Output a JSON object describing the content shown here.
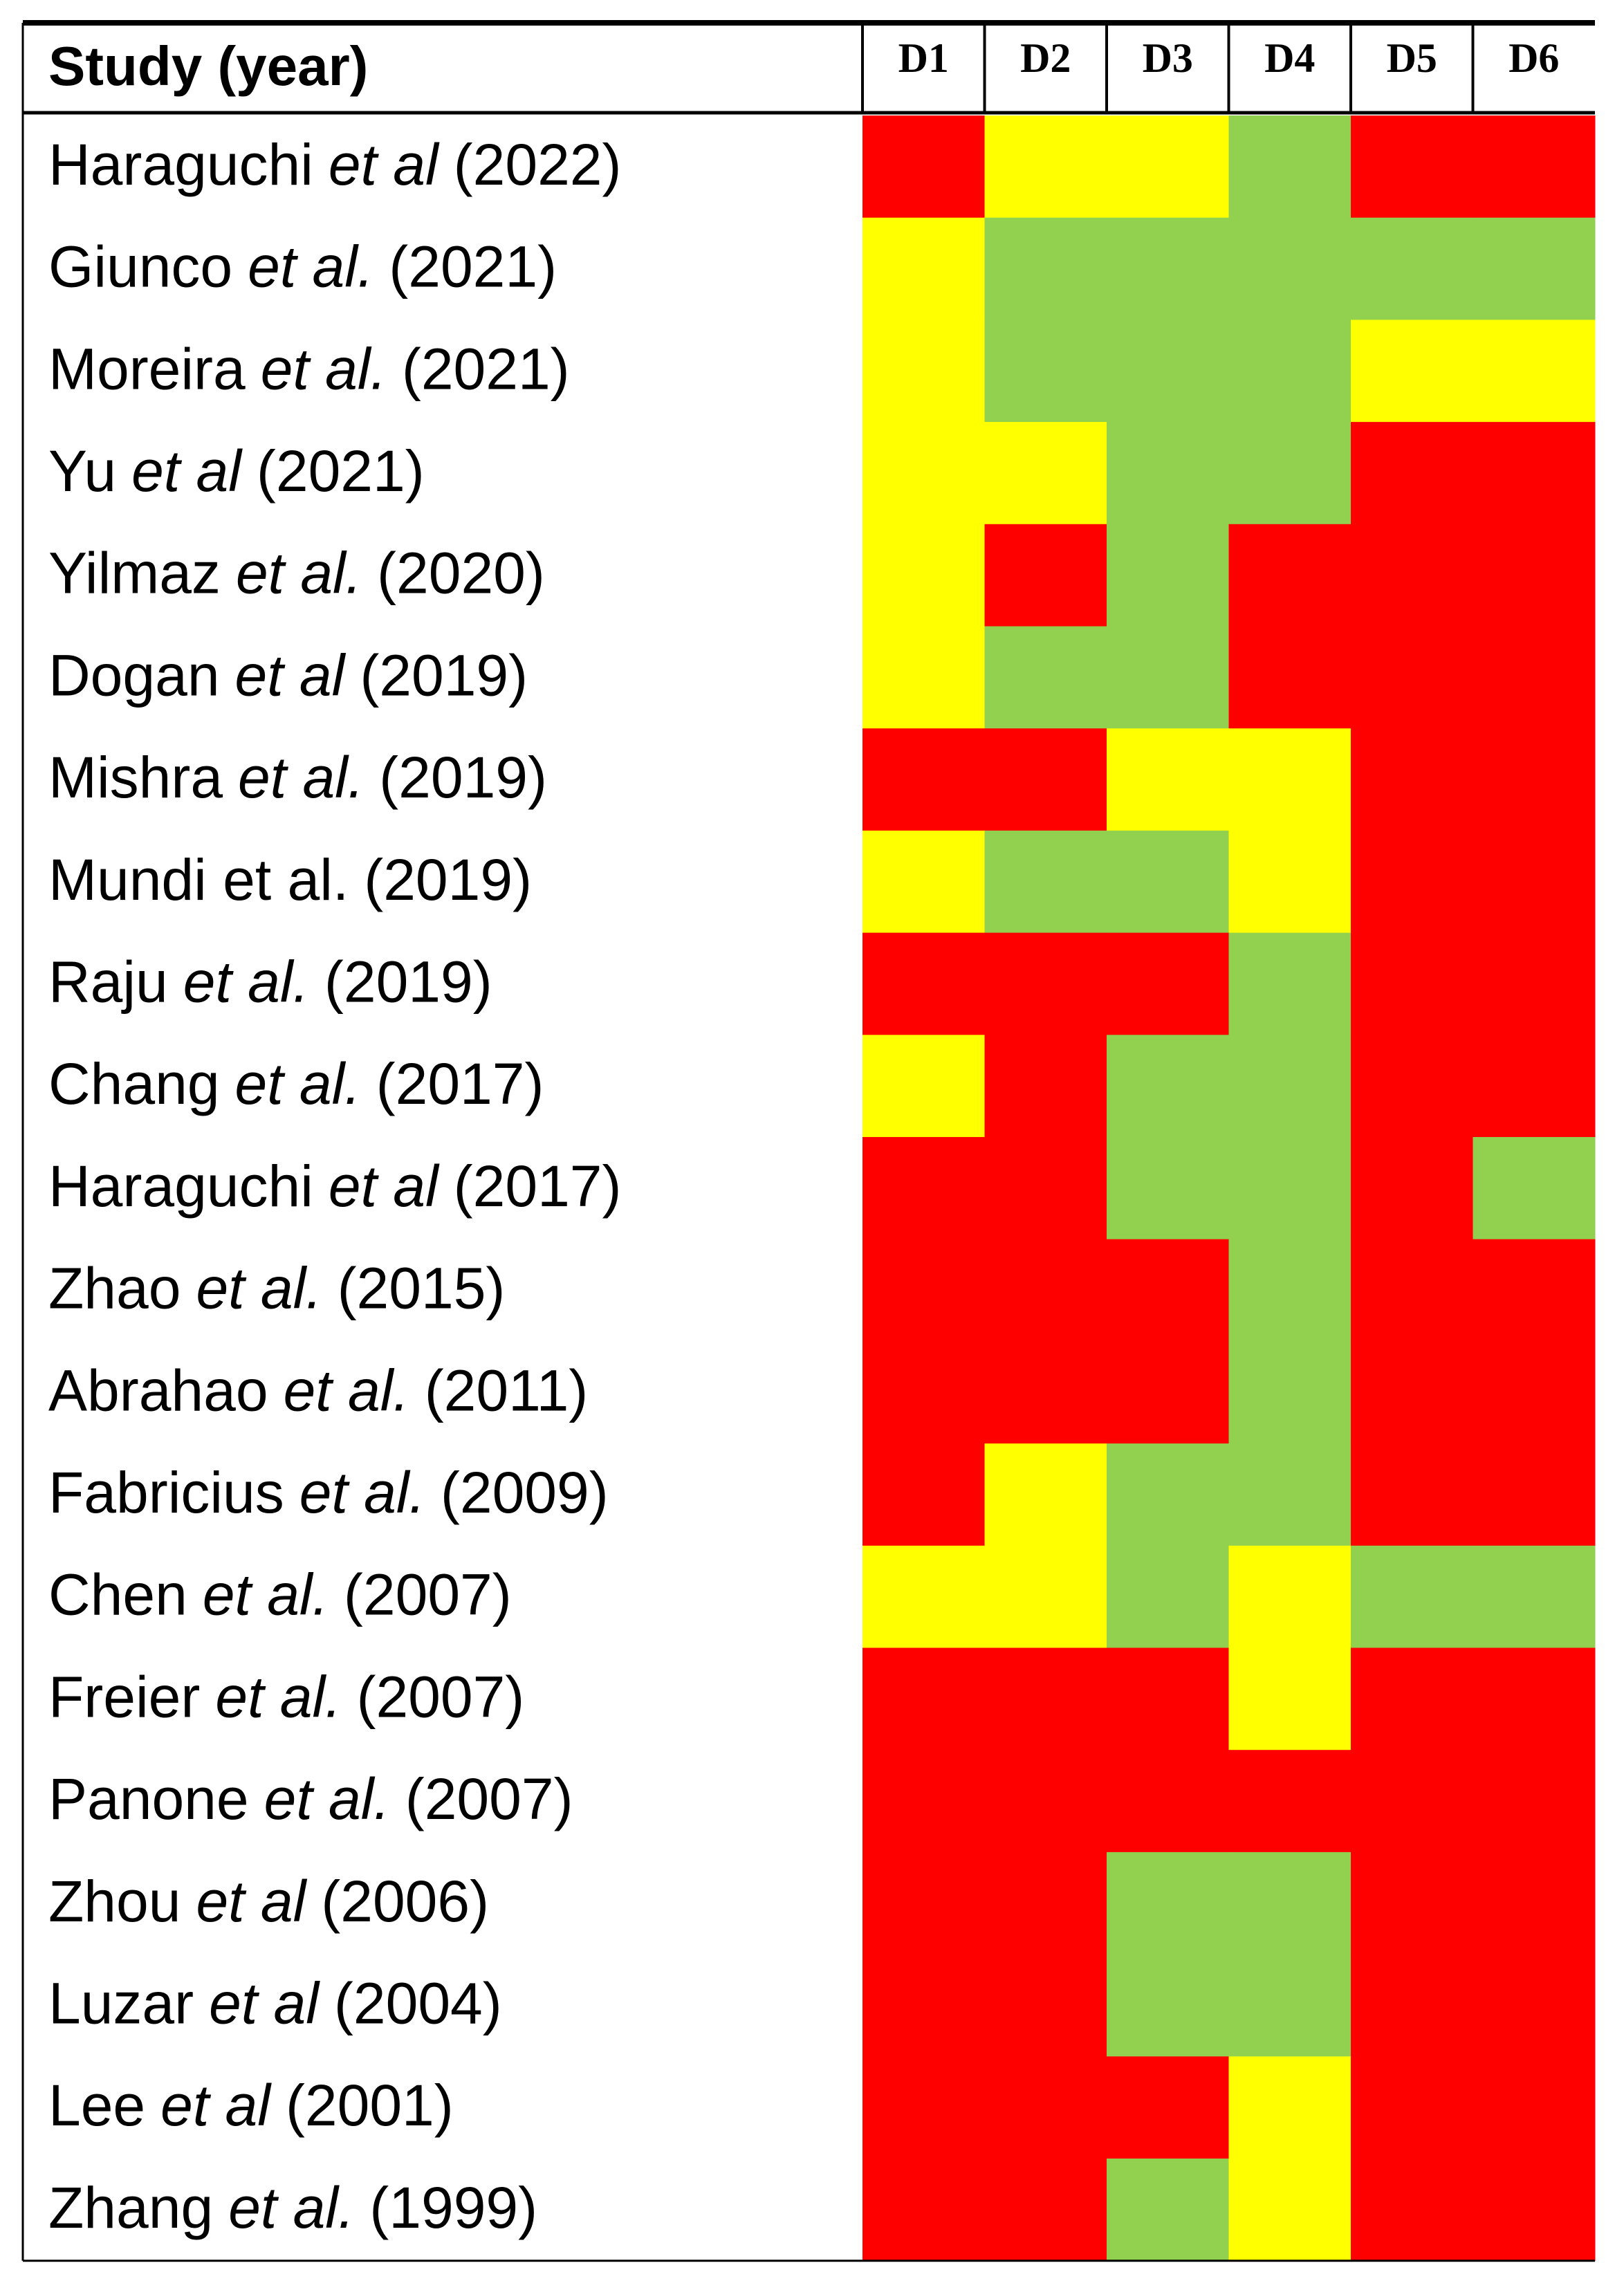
{
  "table": {
    "header": {
      "study": "Study (year)",
      "domains": [
        "D1",
        "D2",
        "D3",
        "D4",
        "D5",
        "D6"
      ]
    },
    "rows": [
      {
        "author": "Haraguchi",
        "etal": "et al",
        "year": "(2022)",
        "cells": [
          "#ff0000",
          "#ffff00",
          "#ffff00",
          "#92d050",
          "#ff0000",
          "#ff0000"
        ]
      },
      {
        "author": "Giunco",
        "etal": "et al.",
        "year": "(2021)",
        "cells": [
          "#ffff00",
          "#92d050",
          "#92d050",
          "#92d050",
          "#92d050",
          "#92d050"
        ]
      },
      {
        "author": "Moreira",
        "etal": "et al.",
        "year": "(2021)",
        "cells": [
          "#ffff00",
          "#92d050",
          "#92d050",
          "#92d050",
          "#ffff00",
          "#ffff00"
        ]
      },
      {
        "author": "Yu",
        "etal": "et al",
        "year": "(2021)",
        "cells": [
          "#ffff00",
          "#ffff00",
          "#92d050",
          "#92d050",
          "#ff0000",
          "#ff0000"
        ]
      },
      {
        "author": "Yilmaz",
        "etal": "et al.",
        "year": "(2020)",
        "cells": [
          "#ffff00",
          "#ff0000",
          "#92d050",
          "#ff0000",
          "#ff0000",
          "#ff0000"
        ]
      },
      {
        "author": "Dogan",
        "etal": "et al",
        "year": "(2019)",
        "cells": [
          "#ffff00",
          "#92d050",
          "#92d050",
          "#ff0000",
          "#ff0000",
          "#ff0000"
        ]
      },
      {
        "author": "Mishra",
        "etal": "et al.",
        "year": "(2019)",
        "cells": [
          "#ff0000",
          "#ff0000",
          "#ffff00",
          "#ffff00",
          "#ff0000",
          "#ff0000"
        ]
      },
      {
        "author": "Mundi et al.",
        "year": "(2019)",
        "cells": [
          "#ffff00",
          "#92d050",
          "#92d050",
          "#ffff00",
          "#ff0000",
          "#ff0000"
        ]
      },
      {
        "author": "Raju",
        "etal": "et al.",
        "year": "(2019)",
        "cells": [
          "#ff0000",
          "#ff0000",
          "#ff0000",
          "#92d050",
          "#ff0000",
          "#ff0000"
        ]
      },
      {
        "author": "Chang",
        "etal": "et al.",
        "year": "(2017)",
        "cells": [
          "#ffff00",
          "#ff0000",
          "#92d050",
          "#92d050",
          "#ff0000",
          "#ff0000"
        ]
      },
      {
        "author": "Haraguchi",
        "etal": "et al",
        "year": "(2017)",
        "cells": [
          "#ff0000",
          "#ff0000",
          "#92d050",
          "#92d050",
          "#ff0000",
          "#92d050"
        ]
      },
      {
        "author": "Zhao",
        "etal": "et al.",
        "year": "(2015)",
        "cells": [
          "#ff0000",
          "#ff0000",
          "#ff0000",
          "#92d050",
          "#ff0000",
          "#ff0000"
        ]
      },
      {
        "author": "Abrahao",
        "etal": "et al.",
        "year": "(2011)",
        "cells": [
          "#ff0000",
          "#ff0000",
          "#ff0000",
          "#92d050",
          "#ff0000",
          "#ff0000"
        ]
      },
      {
        "author": "Fabricius",
        "etal": "et al.",
        "year": "(2009)",
        "cells": [
          "#ff0000",
          "#ffff00",
          "#92d050",
          "#92d050",
          "#ff0000",
          "#ff0000"
        ]
      },
      {
        "author": "Chen",
        "etal": "et al.",
        "year": "(2007)",
        "cells": [
          "#ffff00",
          "#ffff00",
          "#92d050",
          "#ffff00",
          "#92d050",
          "#92d050"
        ]
      },
      {
        "author": "Freier",
        "etal": "et al.",
        "year": "(2007)",
        "cells": [
          "#ff0000",
          "#ff0000",
          "#ff0000",
          "#ffff00",
          "#ff0000",
          "#ff0000"
        ]
      },
      {
        "author": "Panone",
        "etal": "et al.",
        "year": "(2007)",
        "cells": [
          "#ff0000",
          "#ff0000",
          "#ff0000",
          "#ff0000",
          "#ff0000",
          "#ff0000"
        ]
      },
      {
        "author": "Zhou",
        "etal": "et al",
        "year": "(2006)",
        "cells": [
          "#ff0000",
          "#ff0000",
          "#92d050",
          "#92d050",
          "#ff0000",
          "#ff0000"
        ]
      },
      {
        "author": "Luzar",
        "etal": "et al",
        "year": "(2004)",
        "cells": [
          "#ff0000",
          "#ff0000",
          "#92d050",
          "#92d050",
          "#ff0000",
          "#ff0000"
        ]
      },
      {
        "author": "Lee",
        "etal": "et al",
        "year": "(2001)",
        "cells": [
          "#ff0000",
          "#ff0000",
          "#ff0000",
          "#ffff00",
          "#ff0000",
          "#ff0000"
        ]
      },
      {
        "author": "Zhang",
        "etal": "et al.",
        "year": "(1999)",
        "cells": [
          "#ff0000",
          "#ff0000",
          "#92d050",
          "#ffff00",
          "#ff0000",
          "#ff0000"
        ]
      }
    ]
  }
}
